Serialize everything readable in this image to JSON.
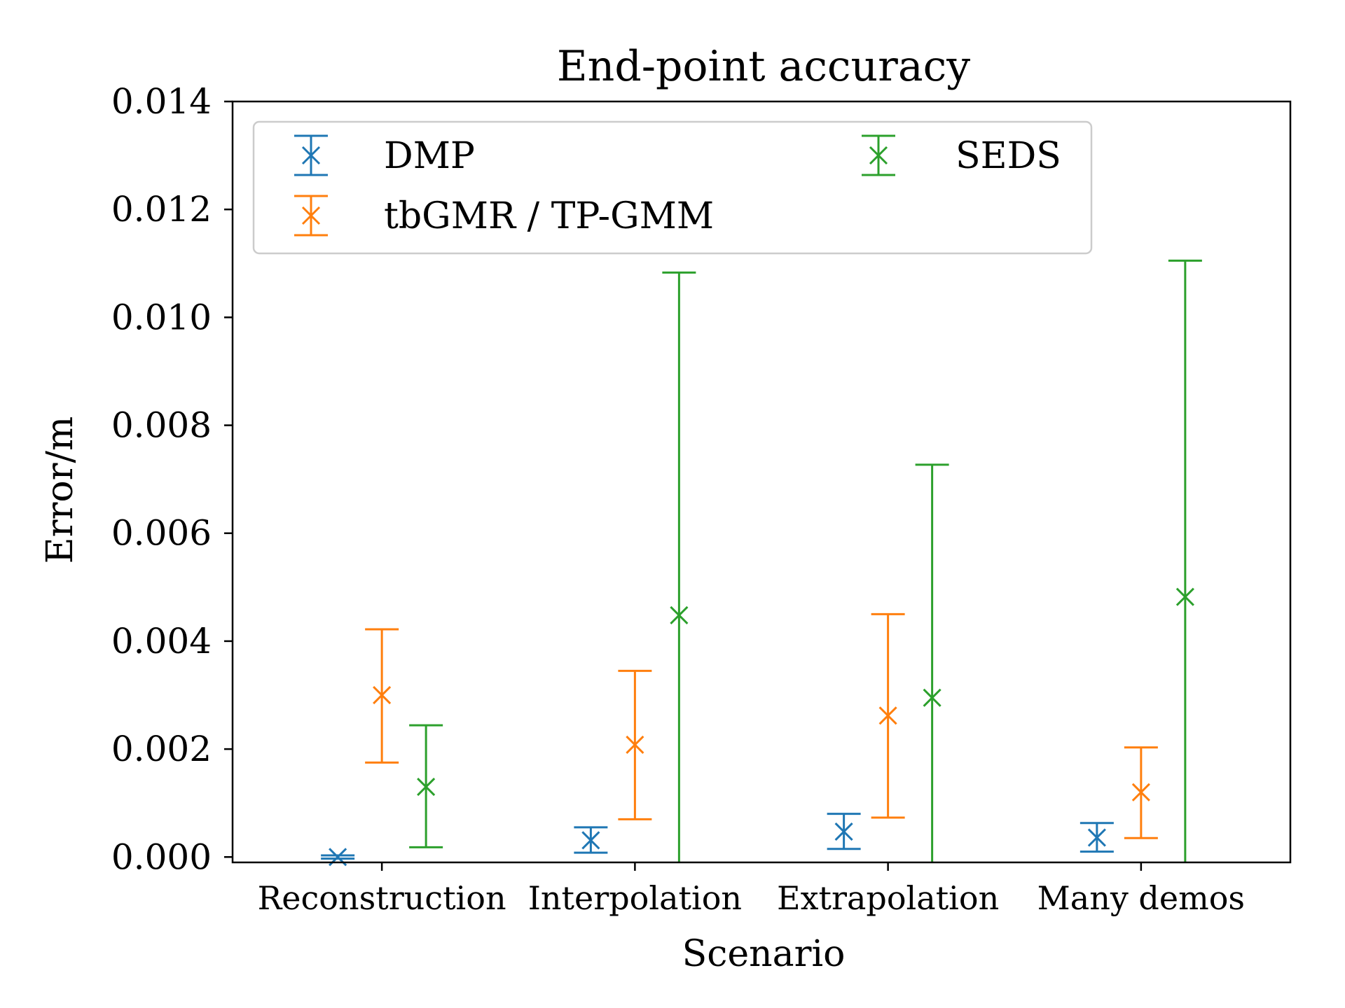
{
  "chart_data": {
    "type": "errorbar",
    "title": "End-point accuracy",
    "xlabel": "Scenario",
    "ylabel": "Error/m",
    "ylim": [
      -0.0001,
      0.014
    ],
    "yticks": [
      0.0,
      0.002,
      0.004,
      0.006,
      0.008,
      0.01,
      0.012,
      0.014
    ],
    "ytick_labels": [
      "0.000",
      "0.002",
      "0.004",
      "0.006",
      "0.008",
      "0.010",
      "0.012",
      "0.014"
    ],
    "categories": [
      "Reconstruction",
      "Interpolation",
      "Extrapolation",
      "Many demos"
    ],
    "legend_position": "upper-left",
    "series": [
      {
        "name": "DMP",
        "color": "#1f77b4",
        "offset": -0.15,
        "values": [
          0.0,
          0.00031,
          0.00047,
          0.00036
        ],
        "lower": [
          -3e-05,
          8e-05,
          0.00015,
          0.0001
        ],
        "upper": [
          3e-05,
          0.00055,
          0.0008,
          0.00063
        ]
      },
      {
        "name": "tbGMR / TP-GMM",
        "color": "#ff7f0e",
        "offset": 0.0,
        "values": [
          0.003,
          0.00208,
          0.00262,
          0.0012
        ],
        "lower": [
          0.00175,
          0.0007,
          0.00073,
          0.00035
        ],
        "upper": [
          0.00422,
          0.00345,
          0.0045,
          0.00203
        ]
      },
      {
        "name": "SEDS",
        "color": "#2ca02c",
        "offset": 0.15,
        "values": [
          0.0013,
          0.00448,
          0.00295,
          0.00482
        ],
        "lower": [
          0.00018,
          -0.0001,
          -0.0001,
          -0.0001
        ],
        "upper": [
          0.00244,
          0.01083,
          0.00727,
          0.01105
        ]
      }
    ]
  }
}
